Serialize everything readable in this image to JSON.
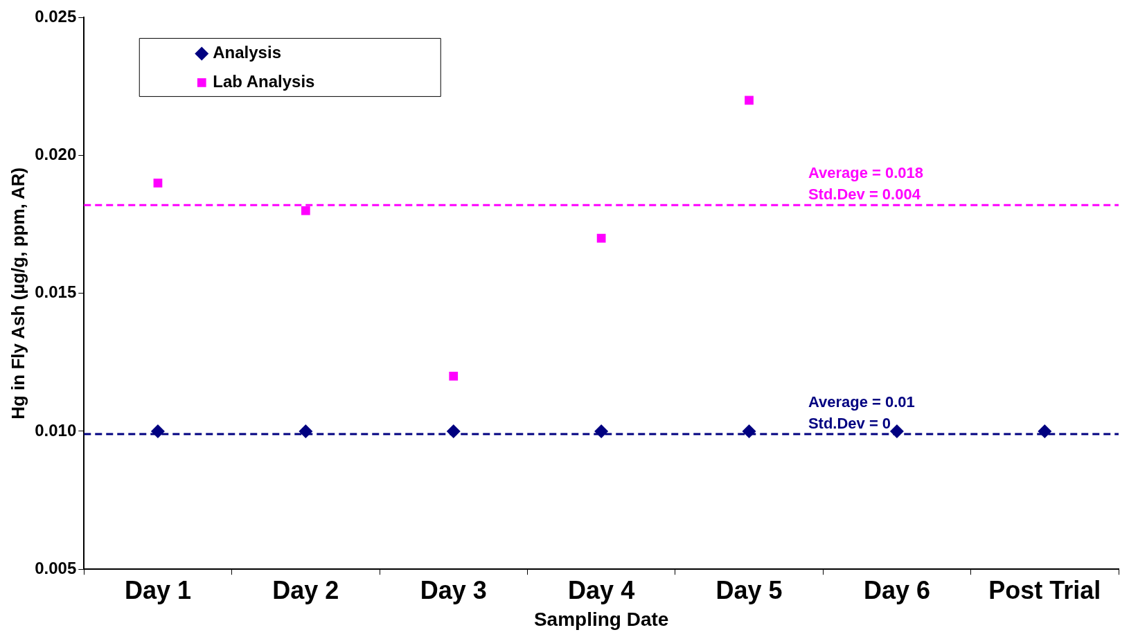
{
  "chart_data": {
    "type": "scatter",
    "xlabel": "Sampling Date",
    "ylabel": "Hg in Fly Ash (µg/g, ppm, AR)",
    "categories": [
      "Day 1",
      "Day 2",
      "Day 3",
      "Day 4",
      "Day 5",
      "Day 6",
      "Post Trial"
    ],
    "series": [
      {
        "name": "Analysis",
        "color": "#000080",
        "marker": "diamond",
        "values": [
          0.01,
          0.01,
          0.01,
          0.01,
          0.01,
          0.01,
          0.01
        ]
      },
      {
        "name": "Lab Analysis",
        "color": "#ff00ff",
        "marker": "square",
        "values": [
          0.019,
          0.018,
          0.012,
          0.017,
          0.022,
          null,
          null
        ]
      }
    ],
    "ylim": [
      0.005,
      0.025
    ],
    "yticks": [
      {
        "value": 0.005,
        "label": "0.005"
      },
      {
        "value": 0.01,
        "label": "0.010"
      },
      {
        "value": 0.015,
        "label": "0.015"
      },
      {
        "value": 0.02,
        "label": "0.020"
      },
      {
        "value": 0.025,
        "label": "0.025"
      }
    ],
    "ref_lines": [
      {
        "axis": "y",
        "value": 0.0182,
        "label": "Average = 0.018\nStd.Dev = 0.004",
        "color": "#ff00ff",
        "line_style": "dashed"
      },
      {
        "axis": "y",
        "value": 0.0099,
        "label": "Average = 0.01\nStd.Dev = 0",
        "color": "#000080",
        "line_style": "dashed"
      }
    ],
    "grid": false,
    "legend": "top left"
  }
}
